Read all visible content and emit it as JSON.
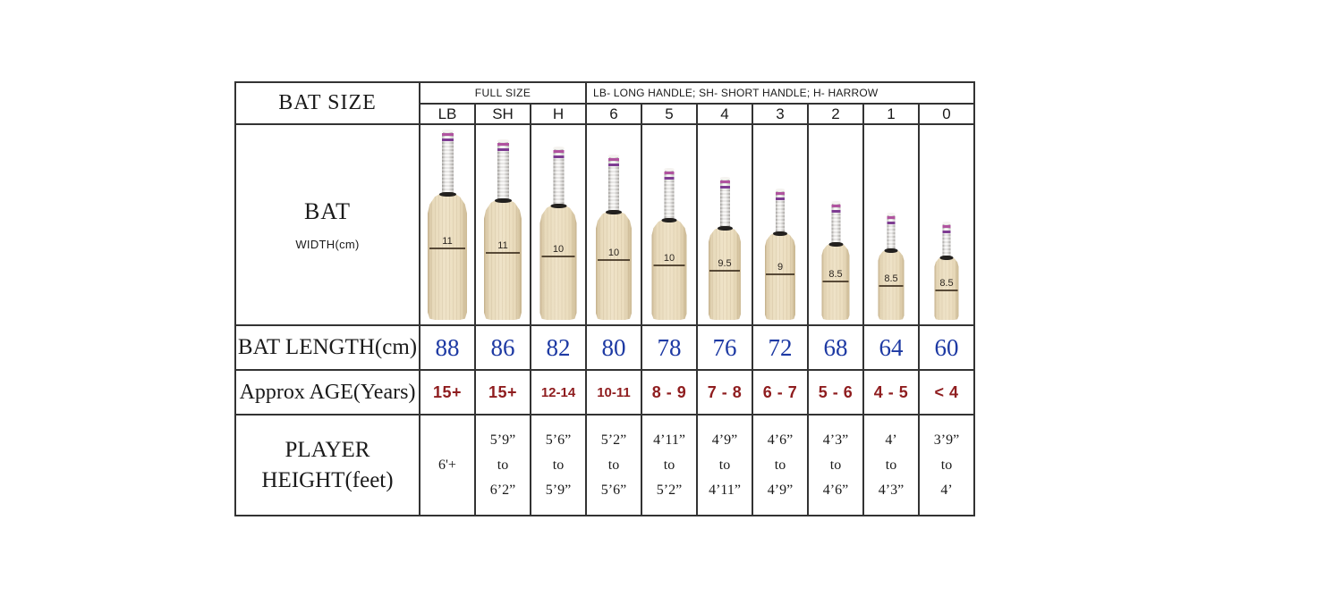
{
  "page": {
    "background": "#ffffff"
  },
  "table": {
    "colors": {
      "border": "#333333",
      "length_value": "#1d39a3",
      "age_value": "#8f1d1f",
      "text": "#1a1a1a",
      "blade": "#efe3c8",
      "grip_band_top": "#b0539f",
      "grip_band_bottom": "#7e3d92"
    },
    "title_header": "BAT SIZE",
    "full_size_label": "FULL SIZE",
    "handle_legend": "LB- LONG HANDLE; SH- SHORT HANDLE; H- HARROW",
    "row_labels": {
      "bat": "BAT",
      "bat_sub": "WIDTH(cm)",
      "length": "BAT LENGTH(cm)",
      "age": "Approx AGE(Years)",
      "height_line1": "PLAYER",
      "height_line2": "HEIGHT(feet)"
    },
    "columns": [
      {
        "size": "LB",
        "width_cm": "11",
        "length_cm": "88",
        "age": "15+",
        "height": [
          "6'+"
        ],
        "bat": {
          "handle_h": 72,
          "blade_h": 142,
          "blade_w": 44,
          "handle_w": 13
        }
      },
      {
        "size": "SH",
        "width_cm": "11",
        "length_cm": "86",
        "age": "15+",
        "height": [
          "5’9”",
          "to",
          "6’2”"
        ],
        "bat": {
          "handle_h": 68,
          "blade_h": 135,
          "blade_w": 42,
          "handle_w": 13
        }
      },
      {
        "size": "H",
        "width_cm": "10",
        "length_cm": "82",
        "age": "12-14",
        "height": [
          "5’6”",
          "to",
          "5’9”"
        ],
        "bat": {
          "handle_h": 66,
          "blade_h": 129,
          "blade_w": 41,
          "handle_w": 12
        }
      },
      {
        "size": "6",
        "width_cm": "10",
        "length_cm": "80",
        "age": "10-11",
        "height": [
          "5’2”",
          "to",
          "5’6”"
        ],
        "bat": {
          "handle_h": 64,
          "blade_h": 122,
          "blade_w": 40,
          "handle_w": 12
        }
      },
      {
        "size": "5",
        "width_cm": "10",
        "length_cm": "78",
        "age": "8 - 9",
        "height": [
          "4’11”",
          "to",
          "5’2”"
        ],
        "bat": {
          "handle_h": 58,
          "blade_h": 113,
          "blade_w": 39,
          "handle_w": 11
        }
      },
      {
        "size": "4",
        "width_cm": "9.5",
        "length_cm": "76",
        "age": "7 - 8",
        "height": [
          "4’9”",
          "to",
          "4’11”"
        ],
        "bat": {
          "handle_h": 57,
          "blade_h": 104,
          "blade_w": 36,
          "handle_w": 11
        }
      },
      {
        "size": "3",
        "width_cm": "9",
        "length_cm": "72",
        "age": "6 - 7",
        "height": [
          "4’6”",
          "to",
          "4’9”"
        ],
        "bat": {
          "handle_h": 50,
          "blade_h": 98,
          "blade_w": 34,
          "handle_w": 10
        }
      },
      {
        "size": "2",
        "width_cm": "8.5",
        "length_cm": "68",
        "age": "5 - 6",
        "height": [
          "4’3”",
          "to",
          "4’6”"
        ],
        "bat": {
          "handle_h": 48,
          "blade_h": 86,
          "blade_w": 31,
          "handle_w": 10
        }
      },
      {
        "size": "1",
        "width_cm": "8.5",
        "length_cm": "64",
        "age": "4 - 5",
        "height": [
          "4’",
          "to",
          "4’3”"
        ],
        "bat": {
          "handle_h": 42,
          "blade_h": 79,
          "blade_w": 29,
          "handle_w": 9
        }
      },
      {
        "size": "0",
        "width_cm": "8.5",
        "length_cm": "60",
        "age": "< 4",
        "height": [
          "3’9”",
          "to",
          "4’"
        ],
        "bat": {
          "handle_h": 40,
          "blade_h": 71,
          "blade_w": 27,
          "handle_w": 9
        }
      }
    ]
  },
  "chart_data": {
    "type": "table",
    "title": "BAT SIZE",
    "column_groups": [
      {
        "label": "FULL SIZE",
        "columns": [
          "LB",
          "SH",
          "H"
        ]
      },
      {
        "label": "LB- LONG HANDLE; SH- SHORT HANDLE; H- HARROW",
        "columns": [
          "6",
          "5",
          "4",
          "3",
          "2",
          "1",
          "0"
        ]
      }
    ],
    "columns": [
      "LB",
      "SH",
      "H",
      "6",
      "5",
      "4",
      "3",
      "2",
      "1",
      "0"
    ],
    "rows": [
      {
        "label": "BAT WIDTH(cm)",
        "values": [
          "11",
          "11",
          "10",
          "10",
          "10",
          "9.5",
          "9",
          "8.5",
          "8.5",
          "8.5"
        ]
      },
      {
        "label": "BAT LENGTH(cm)",
        "values": [
          "88",
          "86",
          "82",
          "80",
          "78",
          "76",
          "72",
          "68",
          "64",
          "60"
        ]
      },
      {
        "label": "Approx AGE(Years)",
        "values": [
          "15+",
          "15+",
          "12-14",
          "10-11",
          "8 - 9",
          "7 - 8",
          "6 - 7",
          "5 - 6",
          "4 - 5",
          "< 4"
        ]
      },
      {
        "label": "PLAYER HEIGHT(feet)",
        "values": [
          "6'+",
          "5’9” to 6’2”",
          "5’6” to 5’9”",
          "5’2” to 5’6”",
          "4’11” to 5’2”",
          "4’9” to 4’11”",
          "4’6” to 4’9”",
          "4’3” to 4’6”",
          "4’ to 4’3”",
          "3’9” to 4’"
        ]
      }
    ]
  }
}
